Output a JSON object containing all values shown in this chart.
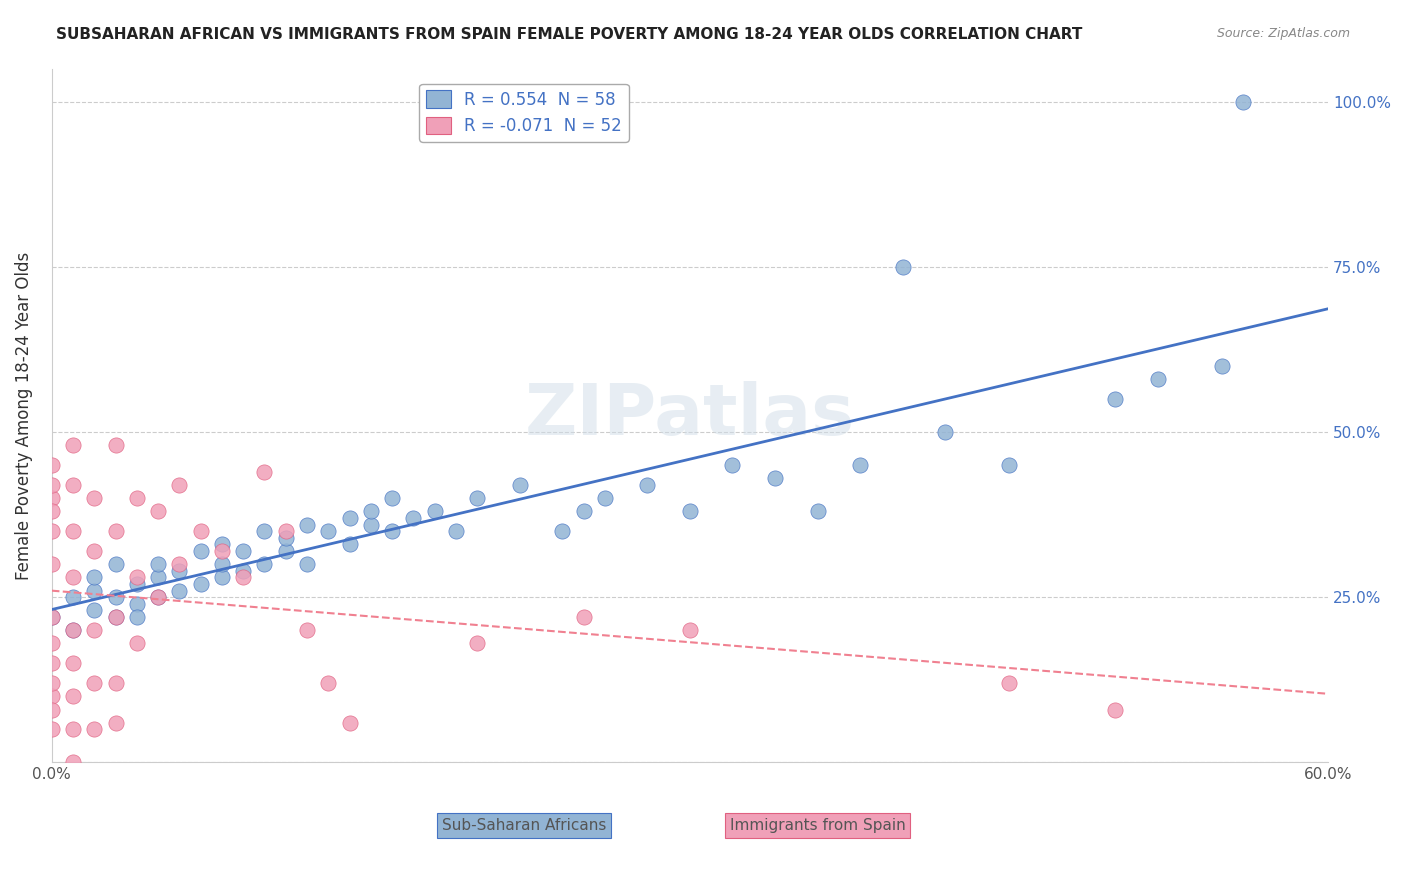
{
  "title": "SUBSAHARAN AFRICAN VS IMMIGRANTS FROM SPAIN FEMALE POVERTY AMONG 18-24 YEAR OLDS CORRELATION CHART",
  "source": "Source: ZipAtlas.com",
  "ylabel": "Female Poverty Among 18-24 Year Olds",
  "xlabel": "",
  "xlim": [
    0.0,
    0.6
  ],
  "ylim": [
    0.0,
    1.05
  ],
  "xticks": [
    0.0,
    0.1,
    0.2,
    0.3,
    0.4,
    0.5,
    0.6
  ],
  "xticklabels": [
    "0.0%",
    "",
    "",
    "",
    "",
    "",
    "60.0%"
  ],
  "ytick_positions": [
    0.0,
    0.25,
    0.5,
    0.75,
    1.0
  ],
  "yticklabels_right": [
    "",
    "25.0%",
    "50.0%",
    "75.0%",
    "100.0%"
  ],
  "R_blue": 0.554,
  "N_blue": 58,
  "R_pink": -0.071,
  "N_pink": 52,
  "color_blue": "#92b4d4",
  "color_pink": "#f0a0b8",
  "line_color_blue": "#4472c4",
  "line_color_pink": "#f4a0b0",
  "legend_label_blue": "Sub-Saharan Africans",
  "legend_label_pink": "Immigrants from Spain",
  "watermark": "ZIPatlas",
  "blue_scatter": [
    [
      0.0,
      0.22
    ],
    [
      0.01,
      0.25
    ],
    [
      0.01,
      0.2
    ],
    [
      0.02,
      0.23
    ],
    [
      0.02,
      0.26
    ],
    [
      0.02,
      0.28
    ],
    [
      0.03,
      0.22
    ],
    [
      0.03,
      0.25
    ],
    [
      0.03,
      0.3
    ],
    [
      0.04,
      0.24
    ],
    [
      0.04,
      0.27
    ],
    [
      0.04,
      0.22
    ],
    [
      0.05,
      0.25
    ],
    [
      0.05,
      0.28
    ],
    [
      0.05,
      0.3
    ],
    [
      0.06,
      0.26
    ],
    [
      0.06,
      0.29
    ],
    [
      0.07,
      0.27
    ],
    [
      0.07,
      0.32
    ],
    [
      0.08,
      0.28
    ],
    [
      0.08,
      0.3
    ],
    [
      0.08,
      0.33
    ],
    [
      0.09,
      0.29
    ],
    [
      0.09,
      0.32
    ],
    [
      0.1,
      0.3
    ],
    [
      0.1,
      0.35
    ],
    [
      0.11,
      0.32
    ],
    [
      0.11,
      0.34
    ],
    [
      0.12,
      0.3
    ],
    [
      0.12,
      0.36
    ],
    [
      0.13,
      0.35
    ],
    [
      0.14,
      0.33
    ],
    [
      0.14,
      0.37
    ],
    [
      0.15,
      0.36
    ],
    [
      0.15,
      0.38
    ],
    [
      0.16,
      0.35
    ],
    [
      0.16,
      0.4
    ],
    [
      0.17,
      0.37
    ],
    [
      0.18,
      0.38
    ],
    [
      0.19,
      0.35
    ],
    [
      0.2,
      0.4
    ],
    [
      0.22,
      0.42
    ],
    [
      0.24,
      0.35
    ],
    [
      0.25,
      0.38
    ],
    [
      0.26,
      0.4
    ],
    [
      0.28,
      0.42
    ],
    [
      0.3,
      0.38
    ],
    [
      0.32,
      0.45
    ],
    [
      0.34,
      0.43
    ],
    [
      0.36,
      0.38
    ],
    [
      0.38,
      0.45
    ],
    [
      0.4,
      0.75
    ],
    [
      0.42,
      0.5
    ],
    [
      0.45,
      0.45
    ],
    [
      0.5,
      0.55
    ],
    [
      0.52,
      0.58
    ],
    [
      0.55,
      0.6
    ],
    [
      0.56,
      1.0
    ]
  ],
  "pink_scatter": [
    [
      0.0,
      0.45
    ],
    [
      0.0,
      0.4
    ],
    [
      0.0,
      0.35
    ],
    [
      0.0,
      0.42
    ],
    [
      0.0,
      0.38
    ],
    [
      0.0,
      0.3
    ],
    [
      0.0,
      0.22
    ],
    [
      0.0,
      0.18
    ],
    [
      0.0,
      0.15
    ],
    [
      0.0,
      0.1
    ],
    [
      0.0,
      0.05
    ],
    [
      0.0,
      0.08
    ],
    [
      0.0,
      0.12
    ],
    [
      0.01,
      0.48
    ],
    [
      0.01,
      0.42
    ],
    [
      0.01,
      0.35
    ],
    [
      0.01,
      0.28
    ],
    [
      0.01,
      0.2
    ],
    [
      0.01,
      0.15
    ],
    [
      0.01,
      0.1
    ],
    [
      0.01,
      0.05
    ],
    [
      0.01,
      0.0
    ],
    [
      0.02,
      0.4
    ],
    [
      0.02,
      0.32
    ],
    [
      0.02,
      0.2
    ],
    [
      0.02,
      0.12
    ],
    [
      0.02,
      0.05
    ],
    [
      0.03,
      0.48
    ],
    [
      0.03,
      0.35
    ],
    [
      0.03,
      0.22
    ],
    [
      0.03,
      0.12
    ],
    [
      0.03,
      0.06
    ],
    [
      0.04,
      0.4
    ],
    [
      0.04,
      0.28
    ],
    [
      0.04,
      0.18
    ],
    [
      0.05,
      0.38
    ],
    [
      0.05,
      0.25
    ],
    [
      0.06,
      0.42
    ],
    [
      0.06,
      0.3
    ],
    [
      0.07,
      0.35
    ],
    [
      0.08,
      0.32
    ],
    [
      0.09,
      0.28
    ],
    [
      0.1,
      0.44
    ],
    [
      0.11,
      0.35
    ],
    [
      0.12,
      0.2
    ],
    [
      0.13,
      0.12
    ],
    [
      0.14,
      0.06
    ],
    [
      0.2,
      0.18
    ],
    [
      0.25,
      0.22
    ],
    [
      0.3,
      0.2
    ],
    [
      0.45,
      0.12
    ],
    [
      0.5,
      0.08
    ]
  ]
}
